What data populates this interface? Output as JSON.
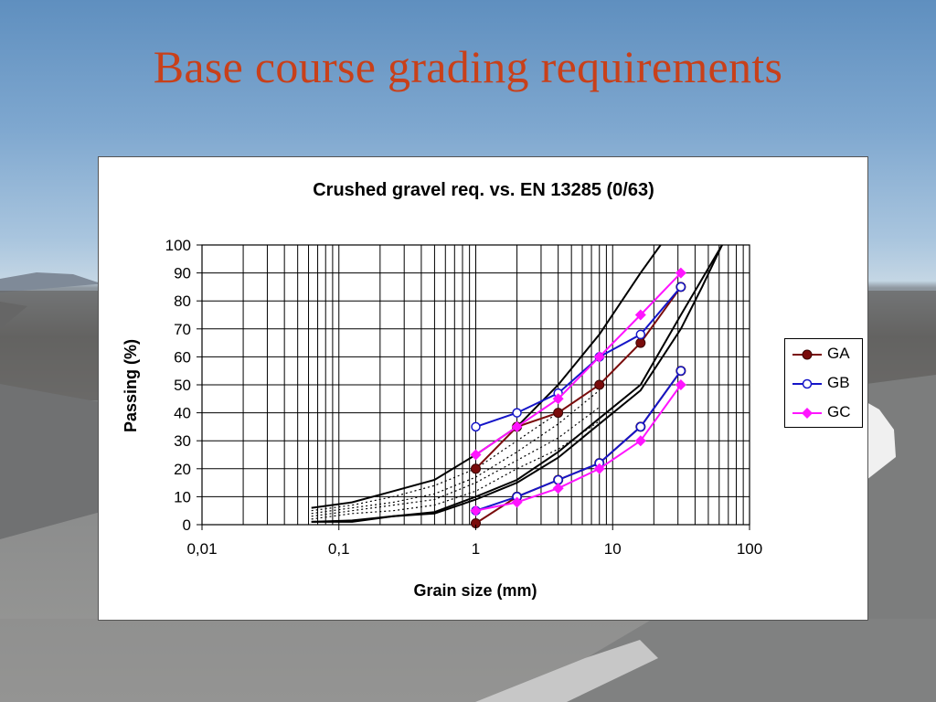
{
  "slide": {
    "title": "Base course grading requirements"
  },
  "chart_data": {
    "type": "line",
    "title": "Crushed gravel req. vs. EN 13285 (0/63)",
    "xlabel": "Grain size (mm)",
    "ylabel": "Passing (%)",
    "xscale": "log",
    "xlim": [
      0.01,
      100
    ],
    "ylim": [
      0,
      100
    ],
    "xticks": [
      "0,01",
      "0,1",
      "1",
      "10",
      "100"
    ],
    "yticks": [
      "0",
      "10",
      "20",
      "30",
      "40",
      "50",
      "60",
      "70",
      "80",
      "90",
      "100"
    ],
    "grid": true,
    "legend_position": "right",
    "series": [
      {
        "name": "GA",
        "color": "#7a0c0c",
        "marker": "filled-circle",
        "x": [
          1,
          2,
          4,
          8,
          16,
          31.5,
          31.5,
          16,
          8,
          4,
          2,
          1
        ],
        "y": [
          20,
          35,
          40,
          50,
          65,
          85,
          55,
          35,
          22,
          16,
          10,
          0.5
        ],
        "segments": [
          [
            0,
            5
          ],
          [
            6,
            11
          ]
        ]
      },
      {
        "name": "GB",
        "color": "#1515c8",
        "marker": "open-circle",
        "x": [
          1,
          2,
          4,
          8,
          16,
          31.5,
          31.5,
          16,
          8,
          4,
          2,
          1
        ],
        "y": [
          35,
          40,
          47,
          60,
          68,
          85,
          55,
          35,
          22,
          16,
          10,
          5
        ],
        "segments": [
          [
            0,
            5
          ],
          [
            6,
            11
          ]
        ]
      },
      {
        "name": "GC",
        "color": "#ff14ff",
        "marker": "diamond",
        "x": [
          1,
          2,
          4,
          8,
          16,
          31.5,
          31.5,
          16,
          8,
          4,
          2,
          1
        ],
        "y": [
          25,
          35,
          45,
          60,
          75,
          90,
          50,
          30,
          20,
          13,
          8,
          5
        ],
        "segments": [
          [
            0,
            5
          ],
          [
            6,
            11
          ]
        ]
      }
    ],
    "envelope_curves": [
      {
        "style": "solid",
        "x": [
          0.063,
          0.125,
          0.25,
          0.5,
          1,
          2,
          4,
          8,
          16,
          22.4
        ],
        "y": [
          6,
          8,
          12,
          16,
          25,
          35,
          50,
          68,
          90,
          100
        ]
      },
      {
        "style": "solid",
        "x": [
          0.063,
          0.125,
          0.25,
          0.5,
          1,
          2,
          4,
          8,
          16,
          31.5,
          63
        ],
        "y": [
          1,
          1.5,
          3,
          4.5,
          10,
          16,
          26,
          38,
          50,
          75,
          100
        ]
      },
      {
        "style": "solid",
        "x": [
          0.063,
          0.125,
          0.25,
          0.5,
          1,
          2,
          4,
          8,
          16,
          31.5,
          45,
          63
        ],
        "y": [
          1,
          1,
          3,
          4,
          9,
          15,
          24,
          36,
          48,
          70,
          85,
          100
        ]
      },
      {
        "style": "dotted",
        "x": [
          0.063,
          0.125,
          0.25,
          0.5,
          1,
          2,
          4,
          8
        ],
        "y": [
          5,
          7,
          10,
          14,
          20,
          30,
          40,
          50
        ]
      },
      {
        "style": "dotted",
        "x": [
          0.063,
          0.125,
          0.25,
          0.5,
          1,
          2,
          4,
          8
        ],
        "y": [
          4,
          6,
          8,
          11,
          17,
          26,
          36,
          48
        ]
      },
      {
        "style": "dotted",
        "x": [
          0.063,
          0.125,
          0.25,
          0.5,
          1,
          2,
          4,
          8
        ],
        "y": [
          3,
          5,
          7,
          9,
          15,
          23,
          31,
          42
        ]
      },
      {
        "style": "dotted",
        "x": [
          0.063,
          0.125,
          0.25,
          0.5,
          1,
          2,
          4,
          8
        ],
        "y": [
          2,
          4,
          5,
          7,
          12,
          20,
          27,
          37
        ]
      }
    ]
  }
}
